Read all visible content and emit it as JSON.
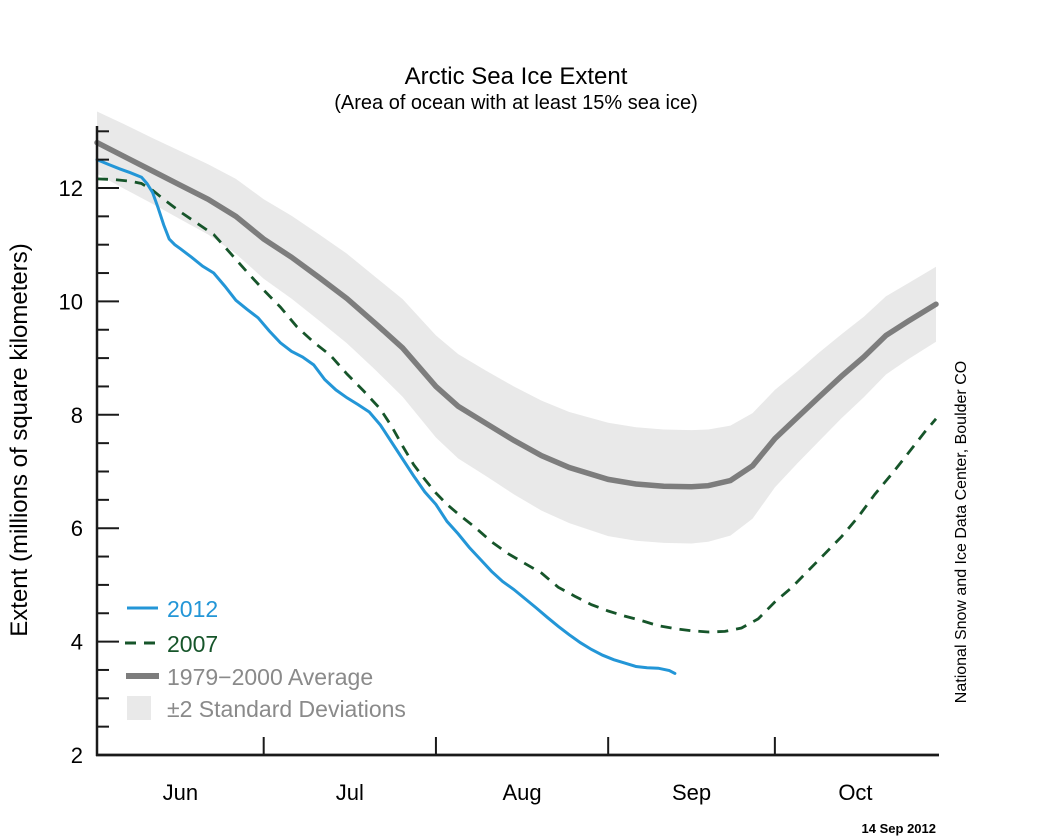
{
  "header": {
    "title": "Arctic Sea Ice Extent",
    "subtitle": "(Area of ocean with at least 15% sea ice)"
  },
  "footer": {
    "date_stamp": "14 Sep 2012"
  },
  "side_label": "National Snow and Ice Data Center, Boulder CO",
  "colors": {
    "line_2012": "#2396D7",
    "line_2007": "#16552A",
    "line_avg": "#7d7d7d",
    "band_fill": "#e9e9e9",
    "legend_gray_text": "#8a8a8a",
    "axis": "#1a1a1a"
  },
  "chart_data": {
    "type": "line",
    "title": "Arctic Sea Ice Extent",
    "subtitle": "(Area of ocean with at least 15% sea ice)",
    "xlabel": "",
    "ylabel": "Extent (millions of square kilometers)",
    "ylim": [
      2,
      13.1
    ],
    "yticks_labeled": [
      2,
      4,
      6,
      8,
      10,
      12
    ],
    "ytick_minor_step": 0.5,
    "x_domain_days_from_jun1": [
      0,
      151
    ],
    "month_labels": [
      "Jun",
      "Jul",
      "Aug",
      "Sep",
      "Oct"
    ],
    "month_boundary_days": [
      30,
      61,
      92,
      122
    ],
    "grid": false,
    "legend_position": "lower-left",
    "legend": [
      {
        "label": "2012",
        "style": "solid-thin",
        "color": "#2396D7"
      },
      {
        "label": "2007",
        "style": "dashed",
        "color": "#16552A"
      },
      {
        "label": "1979−2000 Average",
        "style": "solid-thick",
        "color": "#7d7d7d"
      },
      {
        "label": "±2 Standard Deviations",
        "style": "band",
        "color": "#e9e9e9"
      }
    ],
    "series": [
      {
        "name": "2012",
        "color": "#2396D7",
        "style": "solid",
        "units": "millions of square kilometers",
        "points_day_value": [
          [
            0,
            12.5
          ],
          [
            2,
            12.42
          ],
          [
            4,
            12.34
          ],
          [
            6,
            12.27
          ],
          [
            8,
            12.19
          ],
          [
            9,
            12.08
          ],
          [
            10,
            11.92
          ],
          [
            11,
            11.65
          ],
          [
            12,
            11.35
          ],
          [
            13,
            11.1
          ],
          [
            14,
            11.0
          ],
          [
            15,
            10.93
          ],
          [
            17,
            10.78
          ],
          [
            19,
            10.62
          ],
          [
            21,
            10.5
          ],
          [
            23,
            10.27
          ],
          [
            25,
            10.02
          ],
          [
            27,
            9.86
          ],
          [
            29,
            9.71
          ],
          [
            31,
            9.48
          ],
          [
            33,
            9.27
          ],
          [
            35,
            9.12
          ],
          [
            37,
            9.02
          ],
          [
            39,
            8.88
          ],
          [
            41,
            8.62
          ],
          [
            43,
            8.44
          ],
          [
            45,
            8.3
          ],
          [
            47,
            8.18
          ],
          [
            49,
            8.05
          ],
          [
            51,
            7.82
          ],
          [
            53,
            7.52
          ],
          [
            55,
            7.22
          ],
          [
            57,
            6.92
          ],
          [
            59,
            6.64
          ],
          [
            61,
            6.42
          ],
          [
            63,
            6.12
          ],
          [
            65,
            5.9
          ],
          [
            67,
            5.66
          ],
          [
            69,
            5.45
          ],
          [
            71,
            5.24
          ],
          [
            73,
            5.06
          ],
          [
            75,
            4.92
          ],
          [
            77,
            4.76
          ],
          [
            79,
            4.6
          ],
          [
            81,
            4.43
          ],
          [
            83,
            4.27
          ],
          [
            85,
            4.12
          ],
          [
            87,
            3.98
          ],
          [
            89,
            3.86
          ],
          [
            91,
            3.76
          ],
          [
            93,
            3.68
          ],
          [
            95,
            3.62
          ],
          [
            97,
            3.56
          ],
          [
            99,
            3.54
          ],
          [
            101,
            3.53
          ],
          [
            103,
            3.49
          ],
          [
            104,
            3.44
          ]
        ]
      },
      {
        "name": "2007",
        "color": "#16552A",
        "style": "dashed",
        "units": "millions of square kilometers",
        "points_day_value": [
          [
            0,
            12.16
          ],
          [
            3,
            12.15
          ],
          [
            6,
            12.12
          ],
          [
            8,
            12.08
          ],
          [
            10,
            11.96
          ],
          [
            12,
            11.8
          ],
          [
            15,
            11.58
          ],
          [
            18,
            11.38
          ],
          [
            21,
            11.18
          ],
          [
            24,
            10.85
          ],
          [
            27,
            10.52
          ],
          [
            30,
            10.2
          ],
          [
            33,
            9.9
          ],
          [
            36,
            9.55
          ],
          [
            39,
            9.28
          ],
          [
            42,
            9.05
          ],
          [
            45,
            8.72
          ],
          [
            48,
            8.42
          ],
          [
            51,
            8.1
          ],
          [
            53,
            7.8
          ],
          [
            55,
            7.45
          ],
          [
            57,
            7.12
          ],
          [
            59,
            6.86
          ],
          [
            61,
            6.62
          ],
          [
            63,
            6.42
          ],
          [
            65,
            6.25
          ],
          [
            68,
            6.02
          ],
          [
            71,
            5.76
          ],
          [
            74,
            5.55
          ],
          [
            77,
            5.38
          ],
          [
            80,
            5.21
          ],
          [
            83,
            4.96
          ],
          [
            86,
            4.8
          ],
          [
            89,
            4.65
          ],
          [
            92,
            4.54
          ],
          [
            95,
            4.45
          ],
          [
            98,
            4.37
          ],
          [
            101,
            4.28
          ],
          [
            104,
            4.23
          ],
          [
            107,
            4.19
          ],
          [
            110,
            4.17
          ],
          [
            113,
            4.18
          ],
          [
            116,
            4.24
          ],
          [
            119,
            4.4
          ],
          [
            122,
            4.7
          ],
          [
            125,
            4.95
          ],
          [
            128,
            5.25
          ],
          [
            131,
            5.55
          ],
          [
            134,
            5.85
          ],
          [
            137,
            6.2
          ],
          [
            140,
            6.6
          ],
          [
            143,
            6.95
          ],
          [
            145,
            7.2
          ],
          [
            147,
            7.45
          ],
          [
            149,
            7.7
          ],
          [
            151,
            7.93
          ]
        ]
      },
      {
        "name": "1979−2000 Average",
        "color": "#7d7d7d",
        "style": "solid-thick",
        "units": "millions of square kilometers",
        "points_day_value": [
          [
            0,
            12.8
          ],
          [
            5,
            12.55
          ],
          [
            10,
            12.3
          ],
          [
            15,
            12.05
          ],
          [
            20,
            11.8
          ],
          [
            25,
            11.5
          ],
          [
            30,
            11.1
          ],
          [
            35,
            10.78
          ],
          [
            40,
            10.42
          ],
          [
            45,
            10.05
          ],
          [
            50,
            9.62
          ],
          [
            55,
            9.18
          ],
          [
            61,
            8.5
          ],
          [
            65,
            8.15
          ],
          [
            70,
            7.85
          ],
          [
            75,
            7.55
          ],
          [
            80,
            7.28
          ],
          [
            85,
            7.07
          ],
          [
            92,
            6.86
          ],
          [
            97,
            6.78
          ],
          [
            102,
            6.74
          ],
          [
            107,
            6.73
          ],
          [
            110,
            6.75
          ],
          [
            114,
            6.84
          ],
          [
            118,
            7.1
          ],
          [
            122,
            7.58
          ],
          [
            126,
            7.95
          ],
          [
            130,
            8.32
          ],
          [
            134,
            8.68
          ],
          [
            138,
            9.02
          ],
          [
            142,
            9.4
          ],
          [
            146,
            9.65
          ],
          [
            151,
            9.95
          ]
        ]
      }
    ],
    "band": {
      "name": "±2 Standard Deviations",
      "color": "#e9e9e9",
      "center_series": "1979−2000 Average",
      "half_width_day_value": [
        [
          0,
          0.55
        ],
        [
          5,
          0.57
        ],
        [
          10,
          0.58
        ],
        [
          15,
          0.6
        ],
        [
          20,
          0.62
        ],
        [
          25,
          0.66
        ],
        [
          30,
          0.7
        ],
        [
          35,
          0.73
        ],
        [
          40,
          0.76
        ],
        [
          45,
          0.79
        ],
        [
          50,
          0.82
        ],
        [
          55,
          0.86
        ],
        [
          61,
          0.9
        ],
        [
          65,
          0.92
        ],
        [
          70,
          0.93
        ],
        [
          75,
          0.95
        ],
        [
          80,
          0.97
        ],
        [
          85,
          0.98
        ],
        [
          92,
          1.0
        ],
        [
          97,
          1.0
        ],
        [
          102,
          1.0
        ],
        [
          107,
          1.0
        ],
        [
          110,
          0.99
        ],
        [
          114,
          0.97
        ],
        [
          118,
          0.93
        ],
        [
          122,
          0.86
        ],
        [
          126,
          0.81
        ],
        [
          130,
          0.78
        ],
        [
          134,
          0.74
        ],
        [
          138,
          0.71
        ],
        [
          142,
          0.69
        ],
        [
          146,
          0.67
        ],
        [
          151,
          0.66
        ]
      ]
    }
  }
}
